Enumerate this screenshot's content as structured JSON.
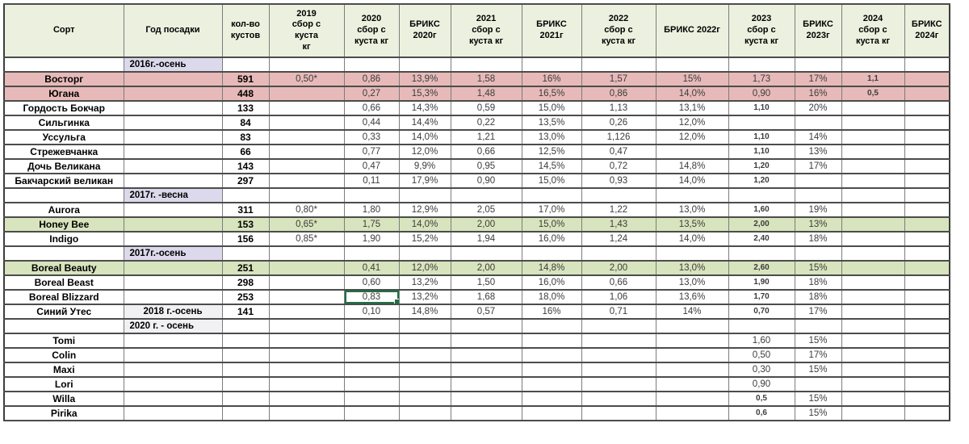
{
  "app": {
    "type": "spreadsheet",
    "language": "ru"
  },
  "colors": {
    "header_bg": "#ECF1DF",
    "row_pink": "#E7BAB9",
    "row_green": "#D8E4BD",
    "section_lavender": "#DDD9EC",
    "section_gray": "#F1F0F2",
    "selection_green": "#1E7145",
    "grid_horizontal": "#4C4C4C",
    "grid_vertical": "#7C7C7C"
  },
  "selection": {
    "row_name": "Boreal Blizzard",
    "column": "2020 сбор с куста кг",
    "value": "0,83"
  },
  "table": {
    "columns": [
      "Сорт",
      "Год посадки",
      "кол-во\nкустов",
      "2019\nсбор с\nкуста\nкг",
      "2020\nсбор с\nкуста  кг",
      "БРИКС\n2020г",
      "2021\nсбор с\nкуста  кг",
      "БРИКС\n2021г",
      "2022\nсбор с\nкуста  кг",
      "БРИКС 2022г",
      "2023\nсбор с\nкуста  кг",
      "БРИКС\n2023г",
      "2024\nсбор с\nкуста  кг",
      "БРИКС\n2024г"
    ],
    "rows": [
      {
        "name": "",
        "year": "2016г.-осень",
        "year_bg": "lavender",
        "bg": "",
        "cells": [
          "",
          "",
          "",
          "",
          "",
          "",
          "",
          "",
          "",
          "",
          "",
          ""
        ]
      },
      {
        "name": "Восторг",
        "year": "",
        "bg": "pink",
        "cells": [
          "591",
          "0,50*",
          "0,86",
          "13,9%",
          "1,58",
          "16%",
          "1,57",
          "15%",
          "1,73",
          "17%",
          "1,1",
          ""
        ],
        "small": [
          10
        ]
      },
      {
        "name": "Югана",
        "year": "",
        "bg": "pink",
        "cells": [
          "448",
          "",
          "0,27",
          "15,3%",
          "1,48",
          "16,5%",
          "0,86",
          "14,0%",
          "0,90",
          "16%",
          "0,5",
          ""
        ],
        "small": [
          10
        ]
      },
      {
        "name": "Гордость Бокчар",
        "year": "",
        "bg": "",
        "cells": [
          "133",
          "",
          "0,66",
          "14,3%",
          "0,59",
          "15,0%",
          "1,13",
          "13,1%",
          "1,10",
          "20%",
          "",
          ""
        ],
        "small": [
          8
        ]
      },
      {
        "name": "Сильгинка",
        "year": "",
        "bg": "",
        "cells": [
          "84",
          "",
          "0,44",
          "14,4%",
          "0,22",
          "13,5%",
          "0,26",
          "12,0%",
          "",
          "",
          "",
          ""
        ]
      },
      {
        "name": "Уссульга",
        "year": "",
        "bg": "",
        "cells": [
          "83",
          "",
          "0,33",
          "14,0%",
          "1,21",
          "13,0%",
          "1,126",
          "12,0%",
          "1,10",
          "14%",
          "",
          ""
        ],
        "small": [
          8
        ]
      },
      {
        "name": "Стрежевчанка",
        "year": "",
        "bg": "",
        "cells": [
          "66",
          "",
          "0,77",
          "12,0%",
          "0,66",
          "12,5%",
          "0,47",
          "",
          "1,10",
          "13%",
          "",
          ""
        ],
        "small": [
          8
        ]
      },
      {
        "name": "Дочь Великана",
        "year": "",
        "bg": "",
        "cells": [
          "143",
          "",
          "0,47",
          "9,9%",
          "0,95",
          "14,5%",
          "0,72",
          "14,8%",
          "1,20",
          "17%",
          "",
          ""
        ],
        "small": [
          8
        ]
      },
      {
        "name": "Бакчарский великан",
        "year": "",
        "bg": "",
        "cells": [
          "297",
          "",
          "0,11",
          "17,9%",
          "0,90",
          "15,0%",
          "0,93",
          "14,0%",
          "1,20",
          "",
          "",
          ""
        ],
        "small": [
          8
        ]
      },
      {
        "name": "",
        "year": "2017г. -весна",
        "year_bg": "lavender",
        "bg": "",
        "cells": [
          "",
          "",
          "",
          "",
          "",
          "",
          "",
          "",
          "",
          "",
          "",
          ""
        ]
      },
      {
        "name": "Aurora",
        "year": "",
        "bg": "",
        "cells": [
          "311",
          "0,80*",
          "1,80",
          "12,9%",
          "2,05",
          "17,0%",
          "1,22",
          "13,0%",
          "1,60",
          "19%",
          "",
          ""
        ],
        "small": [
          8
        ]
      },
      {
        "name": "Honey Bee",
        "year": "",
        "bg": "green",
        "cells": [
          "153",
          "0,65*",
          "1,75",
          "14,0%",
          "2,00",
          "15,0%",
          "1,43",
          "13,5%",
          "2,00",
          "13%",
          "",
          ""
        ],
        "small": [
          8
        ]
      },
      {
        "name": "Indigo",
        "year": "",
        "bg": "",
        "cells": [
          "156",
          "0,85*",
          "1,90",
          "15,2%",
          "1,94",
          "16,0%",
          "1,24",
          "14,0%",
          "2,40",
          "18%",
          "",
          ""
        ],
        "small": [
          8
        ]
      },
      {
        "name": "",
        "year": "2017г.-осень",
        "year_bg": "lavender",
        "bg": "",
        "cells": [
          "",
          "",
          "",
          "",
          "",
          "",
          "",
          "",
          "",
          "",
          "",
          ""
        ]
      },
      {
        "name": "Boreal Beauty",
        "year": "",
        "bg": "green",
        "cells": [
          "251",
          "",
          "0,41",
          "12,0%",
          "2,00",
          "14,8%",
          "2,00",
          "13,0%",
          "2,60",
          "15%",
          "",
          ""
        ],
        "small": [
          8
        ]
      },
      {
        "name": "Boreal Beast",
        "year": "",
        "bg": "",
        "cells": [
          "298",
          "",
          "0,60",
          "13,2%",
          "1,50",
          "16,0%",
          "0,66",
          "13,0%",
          "1,90",
          "18%",
          "",
          ""
        ],
        "small": [
          8
        ]
      },
      {
        "name": "Boreal Blizzard",
        "year": "",
        "bg": "",
        "cells": [
          "253",
          "",
          "0,83",
          "13,2%",
          "1,68",
          "18,0%",
          "1,06",
          "13,6%",
          "1,70",
          "18%",
          "",
          ""
        ],
        "small": [
          8
        ],
        "selected": 2
      },
      {
        "name": "Синий Утес",
        "year": "2018 г.-осень",
        "year_bg": "gray",
        "year_centered": true,
        "bg": "",
        "cells": [
          "141",
          "",
          "0,10",
          "14,8%",
          "0,57",
          "16%",
          "0,71",
          "14%",
          "0,70",
          "17%",
          "",
          ""
        ],
        "small": [
          8
        ]
      },
      {
        "name": "",
        "year": "2020 г. - осень",
        "year_bg": "gray",
        "bg": "",
        "cells": [
          "",
          "",
          "",
          "",
          "",
          "",
          "",
          "",
          "",
          "",
          "",
          ""
        ]
      },
      {
        "name": "Tomi",
        "year": "",
        "bg": "",
        "cells": [
          "",
          "",
          "",
          "",
          "",
          "",
          "",
          "",
          "1,60",
          "15%",
          "",
          ""
        ]
      },
      {
        "name": "Colin",
        "year": "",
        "bg": "",
        "cells": [
          "",
          "",
          "",
          "",
          "",
          "",
          "",
          "",
          "0,50",
          "17%",
          "",
          ""
        ]
      },
      {
        "name": "Maxi",
        "year": "",
        "bg": "",
        "cells": [
          "",
          "",
          "",
          "",
          "",
          "",
          "",
          "",
          "0,30",
          "15%",
          "",
          ""
        ]
      },
      {
        "name": "Lori",
        "year": "",
        "bg": "",
        "cells": [
          "",
          "",
          "",
          "",
          "",
          "",
          "",
          "",
          "0,90",
          "",
          "",
          ""
        ]
      },
      {
        "name": "Willa",
        "year": "",
        "bg": "",
        "cells": [
          "",
          "",
          "",
          "",
          "",
          "",
          "",
          "",
          "0,5",
          "15%",
          "",
          ""
        ],
        "small": [
          8
        ]
      },
      {
        "name": "Pirika",
        "year": "",
        "bg": "",
        "cells": [
          "",
          "",
          "",
          "",
          "",
          "",
          "",
          "",
          "0,6",
          "15%",
          "",
          ""
        ],
        "small": [
          8
        ]
      }
    ]
  }
}
